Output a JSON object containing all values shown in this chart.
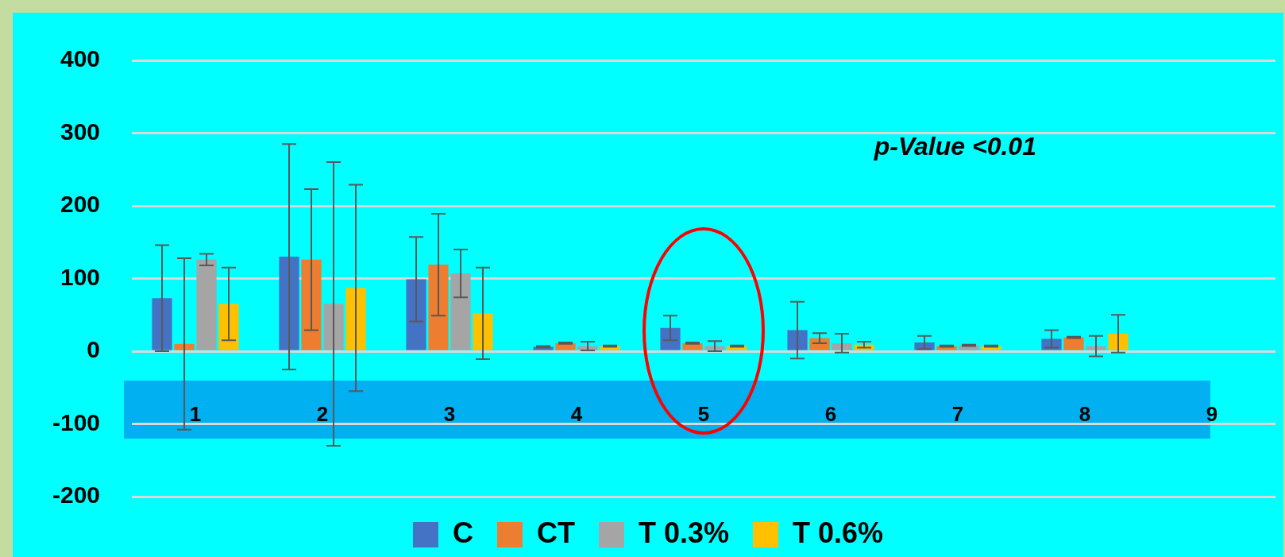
{
  "chart_data": {
    "type": "bar",
    "categories": [
      "1",
      "2",
      "3",
      "4",
      "5",
      "6",
      "7",
      "8",
      "9"
    ],
    "series": [
      {
        "name": "C",
        "color": "#4472c4",
        "values": [
          73,
          130,
          99,
          6,
          32,
          29,
          12,
          17,
          null
        ],
        "errors": [
          73,
          155,
          58,
          1,
          17,
          39,
          9,
          12,
          null
        ]
      },
      {
        "name": "CT",
        "color": "#ed7d31",
        "values": [
          10,
          126,
          119,
          11,
          11,
          18,
          7,
          19,
          null
        ],
        "errors": [
          118,
          97,
          70,
          1,
          1,
          7,
          1,
          1,
          null
        ]
      },
      {
        "name": "T 0.3%",
        "color": "#a5a5a5",
        "values": [
          126,
          65,
          107,
          7,
          7,
          11,
          8,
          7,
          null
        ],
        "errors": [
          8,
          195,
          33,
          6,
          7,
          13,
          1,
          14,
          null
        ]
      },
      {
        "name": "T 0.6%",
        "color": "#ffc000",
        "values": [
          65,
          87,
          52,
          7,
          7,
          9,
          7,
          24,
          null
        ],
        "errors": [
          50,
          142,
          63,
          1,
          1,
          4,
          1,
          26,
          null
        ]
      }
    ],
    "ylim": [
      -200,
      400
    ],
    "yticks": [
      -200,
      -100,
      0,
      100,
      200,
      300,
      400
    ],
    "grid": "y",
    "legend": "bottom",
    "annotations": [
      "p-Value <0.01"
    ]
  }
}
